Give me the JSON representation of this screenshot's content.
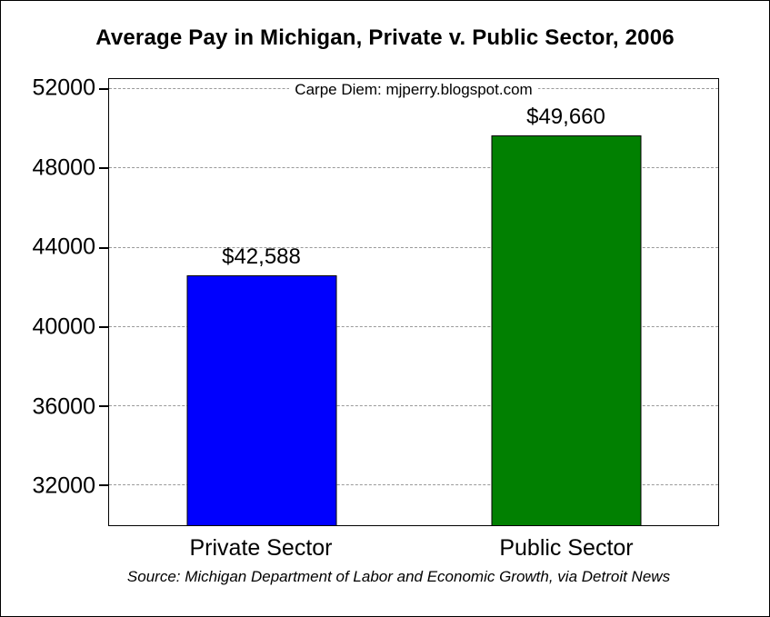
{
  "chart_data": {
    "type": "bar",
    "title": "Average Pay in Michigan, Private v. Public Sector, 2006",
    "annotation": "Carpe Diem: mjperry.blogspot.com",
    "source": "Source: Michigan Department of Labor and Economic Growth, via Detroit News",
    "categories": [
      "Private Sector",
      "Public Sector"
    ],
    "values": [
      42588,
      49660
    ],
    "value_labels": [
      "$42,588",
      "$49,660"
    ],
    "bar_colors": [
      "#0000fe",
      "#018001"
    ],
    "yticks": [
      32000,
      36000,
      40000,
      44000,
      48000,
      52000
    ],
    "ylim": [
      30000,
      52500
    ],
    "xlabel": "",
    "ylabel": "",
    "grid": "horizontal-dashed",
    "legend": "none"
  }
}
